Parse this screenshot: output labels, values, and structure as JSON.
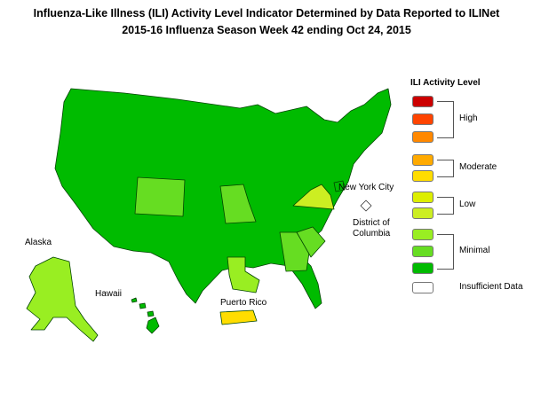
{
  "title": {
    "line1": "Influenza-Like Illness (ILI) Activity Level Indicator Determined by Data Reported to ILINet",
    "line2": "2015-16  Influenza Season Week  42 ending Oct 24, 2015"
  },
  "labels": {
    "alaska": "Alaska",
    "hawaii": "Hawaii",
    "puerto_rico": "Puerto Rico",
    "new_york_city": "New York City",
    "dc_line1": "District of",
    "dc_line2": "Columbia"
  },
  "legend": {
    "title": "ILI Activity Level",
    "levels": [
      {
        "level": 10,
        "color": "#cc0000"
      },
      {
        "level": 9,
        "color": "#ff4400"
      },
      {
        "level": 8,
        "color": "#ff8800"
      },
      {
        "level": 7,
        "color": "#ffaa00"
      },
      {
        "level": 6,
        "color": "#ffdd00"
      },
      {
        "level": 5,
        "color": "#ddee00"
      },
      {
        "level": 4,
        "color": "#ccee22"
      },
      {
        "level": 3,
        "color": "#99ee22"
      },
      {
        "level": 2,
        "color": "#66dd22"
      },
      {
        "level": 1,
        "color": "#00bb00"
      },
      {
        "level": 0,
        "color": "#ffffff"
      }
    ],
    "groups": {
      "high": "High",
      "moderate": "Moderate",
      "low": "Low",
      "minimal": "Minimal",
      "insufficient": "Insufficient Data"
    }
  },
  "map_data": {
    "default_level_color": "#00bb00",
    "highlighted": {
      "Colorado": "#66dd22",
      "Missouri": "#66dd22",
      "Virginia": "#ccee22",
      "Georgia": "#66dd22",
      "South Carolina": "#66dd22",
      "Louisiana": "#99ee22",
      "Alaska": "#99ee22",
      "Puerto Rico": "#ffdd00",
      "District of Columbia": "#ffffff"
    }
  }
}
